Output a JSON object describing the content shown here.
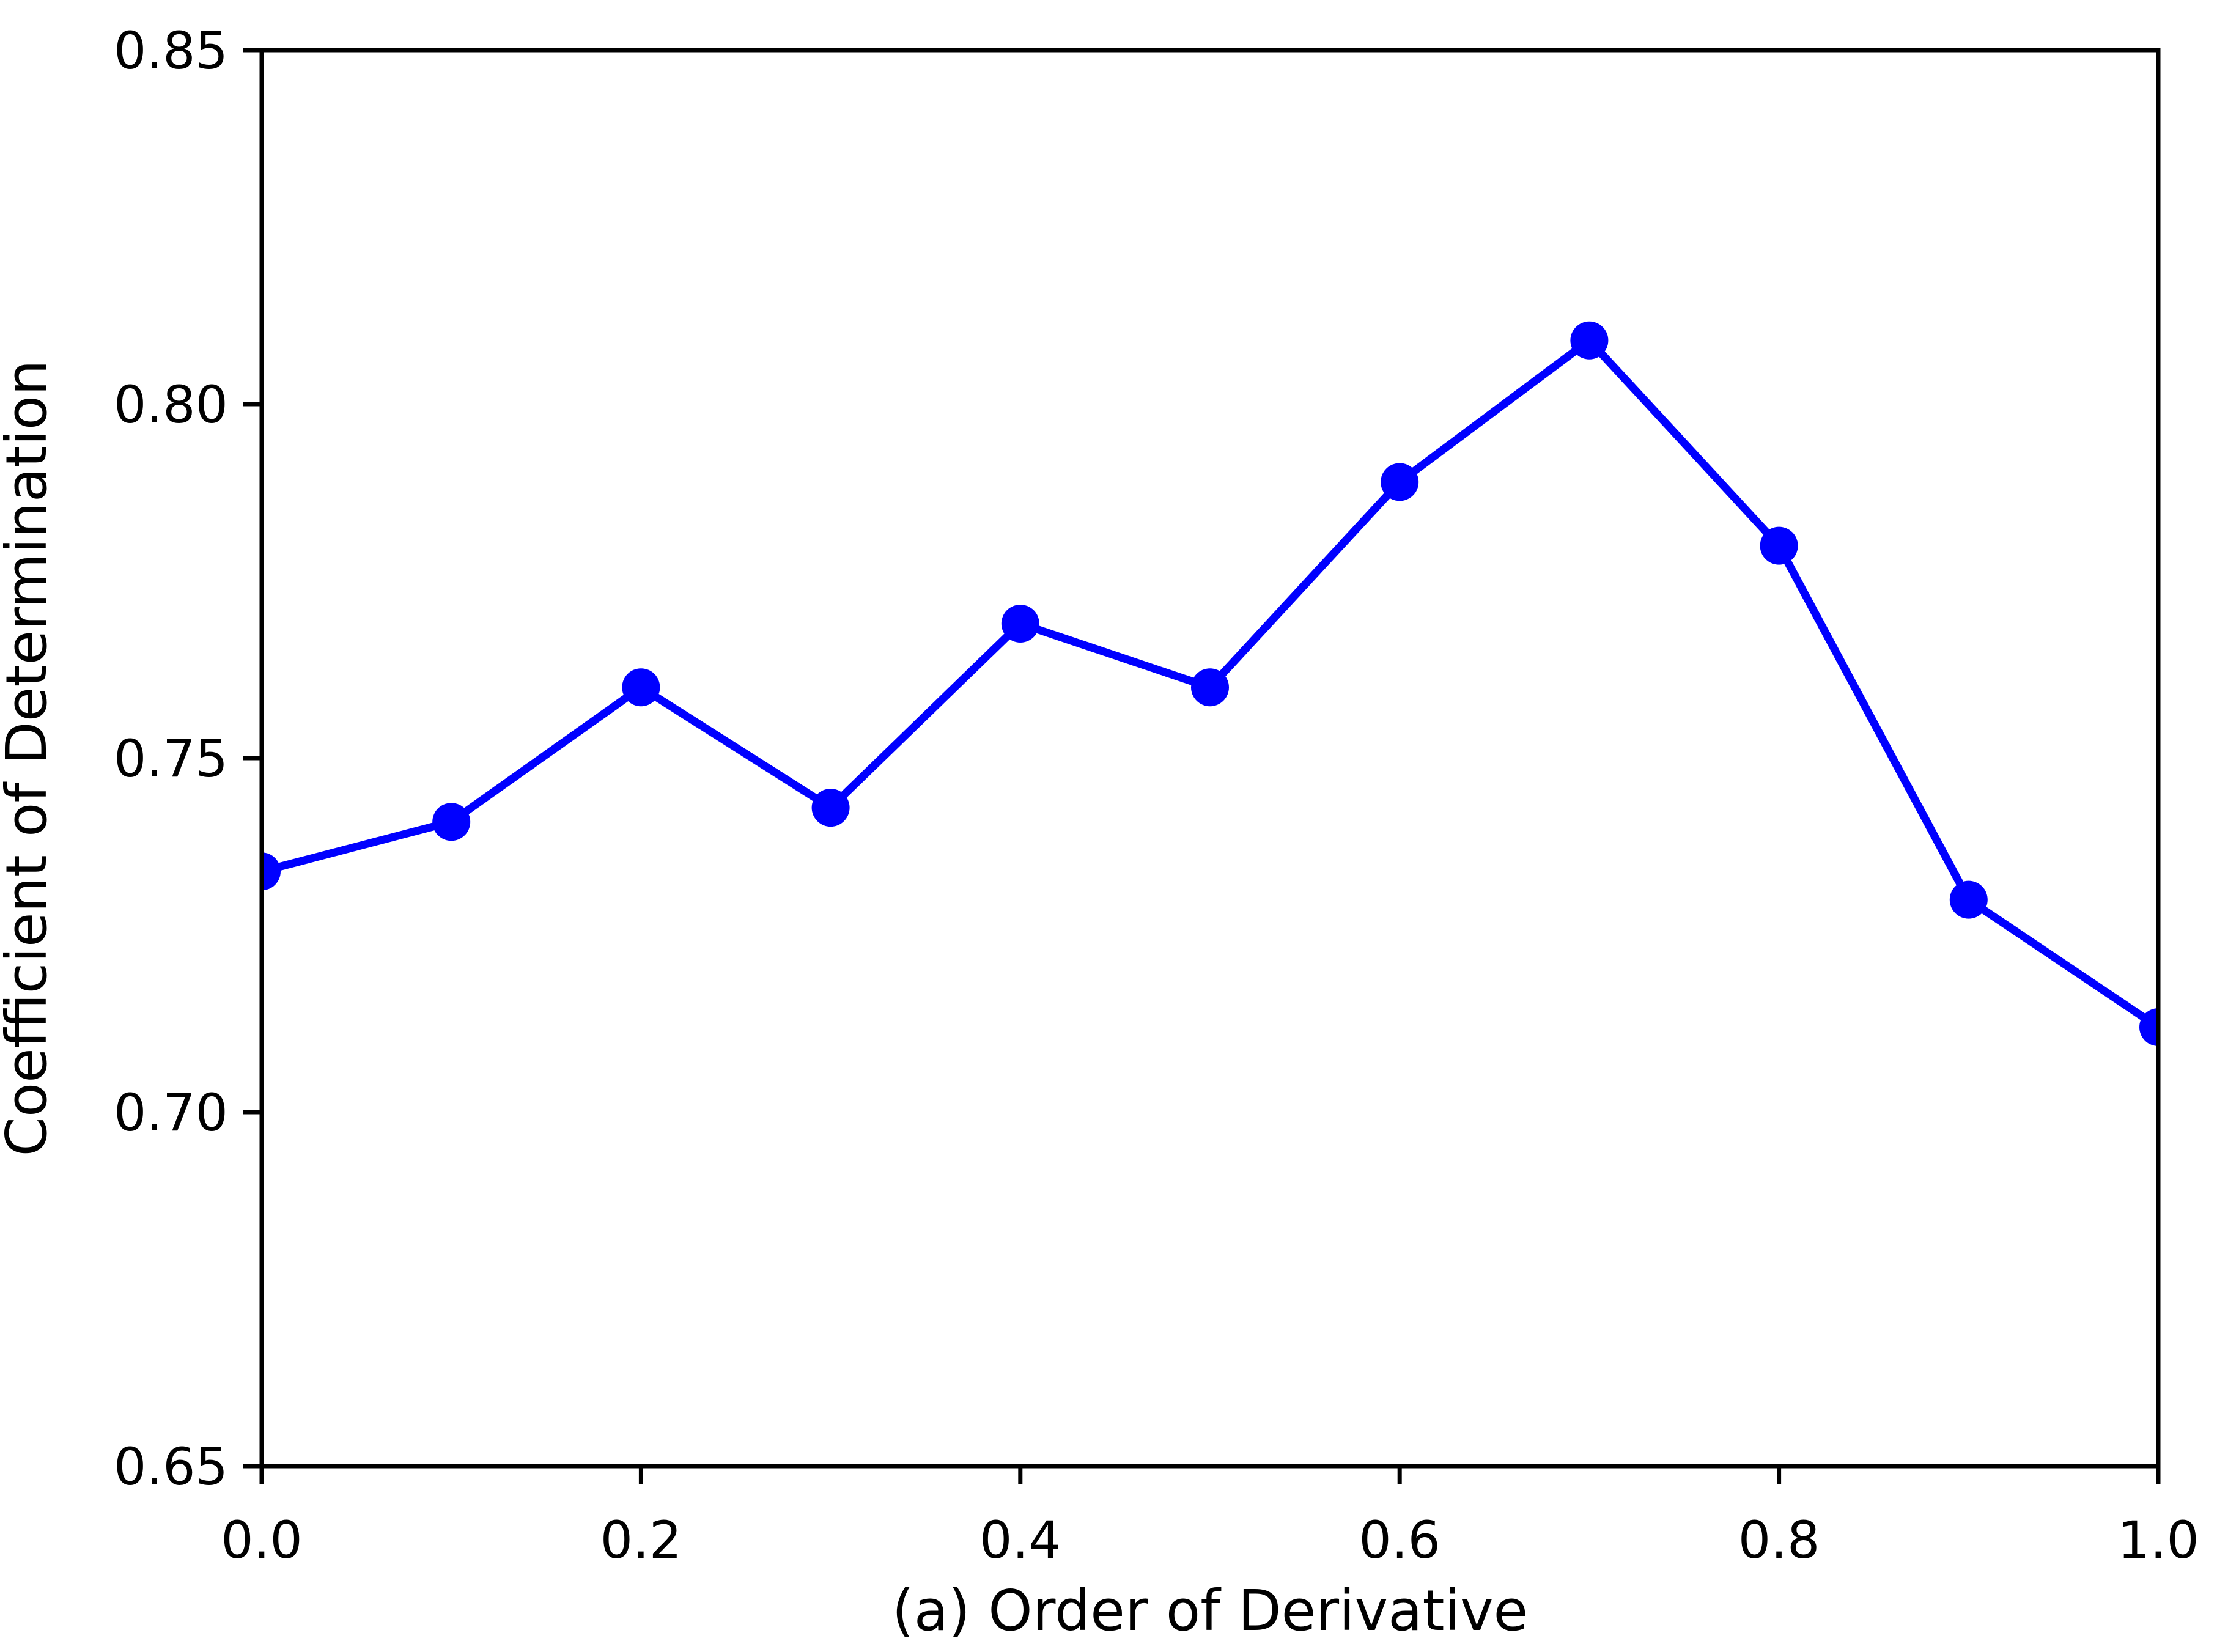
{
  "figure": {
    "background": "#ffffff"
  },
  "chart_data": {
    "type": "line",
    "x": [
      0.0,
      0.1,
      0.2,
      0.3,
      0.4,
      0.5,
      0.6,
      0.7,
      0.8,
      0.9,
      1.0
    ],
    "y": [
      0.734,
      0.741,
      0.76,
      0.743,
      0.769,
      0.76,
      0.789,
      0.809,
      0.78,
      0.73,
      0.712
    ],
    "title": "",
    "xlabel": "(a) Order of Derivative",
    "ylabel": "Coefficient of Determination",
    "xlim": [
      0.0,
      1.0
    ],
    "ylim": [
      0.65,
      0.85
    ],
    "xticks": {
      "values": [
        0.0,
        0.2,
        0.4,
        0.6,
        0.8,
        1.0
      ],
      "labels": [
        "0.0",
        "0.2",
        "0.4",
        "0.6",
        "0.8",
        "1.0"
      ]
    },
    "yticks": {
      "values": [
        0.65,
        0.7,
        0.75,
        0.8,
        0.85
      ],
      "labels": [
        "0.65",
        "0.70",
        "0.75",
        "0.80",
        "0.85"
      ]
    },
    "line_color": "#0000ff",
    "marker": "circle",
    "grid": false,
    "legend": null
  }
}
